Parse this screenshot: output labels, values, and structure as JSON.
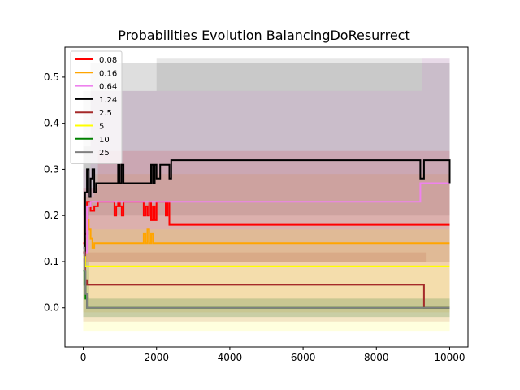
{
  "chart_data": {
    "type": "line",
    "title": "Probabilities Evolution BalancingDoResurrect",
    "xlabel": "",
    "ylabel": "",
    "xlim": [
      -500,
      10500
    ],
    "ylim": [
      -0.085,
      0.565
    ],
    "xticks": [
      0,
      2000,
      4000,
      6000,
      8000,
      10000
    ],
    "xtick_labels": [
      "0",
      "2000",
      "4000",
      "6000",
      "8000",
      "10000"
    ],
    "yticks": [
      0.0,
      0.1,
      0.2,
      0.3,
      0.4,
      0.5
    ],
    "ytick_labels": [
      "0.0",
      "0.1",
      "0.2",
      "0.3",
      "0.4",
      "0.5"
    ],
    "grid": false,
    "legend": "upper-left",
    "series": [
      {
        "name": "0.08",
        "color": "#ff0000",
        "points": [
          [
            0,
            0.14
          ],
          [
            40,
            0.16
          ],
          [
            100,
            0.23
          ],
          [
            200,
            0.21
          ],
          [
            300,
            0.22
          ],
          [
            400,
            0.23
          ],
          [
            800,
            0.23
          ],
          [
            850,
            0.2
          ],
          [
            900,
            0.22
          ],
          [
            950,
            0.23
          ],
          [
            1000,
            0.22
          ],
          [
            1050,
            0.2
          ],
          [
            1100,
            0.23
          ],
          [
            1600,
            0.23
          ],
          [
            1650,
            0.2
          ],
          [
            1700,
            0.22
          ],
          [
            1750,
            0.2
          ],
          [
            1800,
            0.23
          ],
          [
            1850,
            0.19
          ],
          [
            1900,
            0.22
          ],
          [
            1950,
            0.19
          ],
          [
            2000,
            0.23
          ],
          [
            2200,
            0.23
          ],
          [
            2250,
            0.2
          ],
          [
            2300,
            0.23
          ],
          [
            2350,
            0.18
          ],
          [
            10000,
            0.18
          ]
        ],
        "band": [
          [
            0,
            0.02,
            0.26
          ],
          [
            400,
            0.1,
            0.34
          ],
          [
            10000,
            0.1,
            0.34
          ]
        ]
      },
      {
        "name": "0.16",
        "color": "#ffa500",
        "points": [
          [
            0,
            0.12
          ],
          [
            50,
            0.15
          ],
          [
            100,
            0.19
          ],
          [
            150,
            0.17
          ],
          [
            200,
            0.15
          ],
          [
            250,
            0.13
          ],
          [
            300,
            0.14
          ],
          [
            1600,
            0.14
          ],
          [
            1650,
            0.16
          ],
          [
            1700,
            0.14
          ],
          [
            1750,
            0.17
          ],
          [
            1800,
            0.14
          ],
          [
            1850,
            0.16
          ],
          [
            1900,
            0.14
          ],
          [
            10000,
            0.14
          ]
        ],
        "band": [
          [
            0,
            0.0,
            0.24
          ],
          [
            300,
            -0.01,
            0.29
          ],
          [
            10000,
            -0.01,
            0.29
          ]
        ]
      },
      {
        "name": "0.64",
        "color": "#ee82ee",
        "points": [
          [
            0,
            0.12
          ],
          [
            100,
            0.22
          ],
          [
            200,
            0.23
          ],
          [
            9150,
            0.23
          ],
          [
            9200,
            0.27
          ],
          [
            10000,
            0.27
          ]
        ],
        "band": [
          [
            0,
            0.05,
            0.3
          ],
          [
            200,
            0.09,
            0.47
          ],
          [
            9200,
            0.09,
            0.47
          ],
          [
            9250,
            0.09,
            0.54
          ],
          [
            10000,
            0.09,
            0.54
          ]
        ]
      },
      {
        "name": "1.24",
        "color": "#000000",
        "points": [
          [
            0,
            0.12
          ],
          [
            50,
            0.25
          ],
          [
            100,
            0.3
          ],
          [
            150,
            0.24
          ],
          [
            200,
            0.28
          ],
          [
            250,
            0.3
          ],
          [
            300,
            0.25
          ],
          [
            350,
            0.27
          ],
          [
            900,
            0.27
          ],
          [
            950,
            0.31
          ],
          [
            1000,
            0.27
          ],
          [
            1050,
            0.31
          ],
          [
            1100,
            0.27
          ],
          [
            1800,
            0.27
          ],
          [
            1850,
            0.31
          ],
          [
            1900,
            0.27
          ],
          [
            1950,
            0.31
          ],
          [
            2000,
            0.28
          ],
          [
            2100,
            0.31
          ],
          [
            2300,
            0.31
          ],
          [
            2350,
            0.28
          ],
          [
            2400,
            0.32
          ],
          [
            9150,
            0.32
          ],
          [
            9200,
            0.28
          ],
          [
            9300,
            0.32
          ],
          [
            9950,
            0.32
          ],
          [
            10000,
            0.27
          ]
        ],
        "band": [
          [
            0,
            0.05,
            0.35
          ],
          [
            200,
            0.1,
            0.53
          ],
          [
            10000,
            0.1,
            0.53
          ]
        ]
      },
      {
        "name": "2.5",
        "color": "#a52a2a",
        "points": [
          [
            0,
            0.12
          ],
          [
            50,
            0.06
          ],
          [
            100,
            0.05
          ],
          [
            9250,
            0.05
          ],
          [
            9300,
            0.0
          ],
          [
            10000,
            0.0
          ]
        ],
        "band": [
          [
            0,
            0.0,
            0.12
          ],
          [
            100,
            -0.03,
            0.12
          ],
          [
            9300,
            -0.03,
            0.12
          ],
          [
            9350,
            -0.03,
            0.1
          ],
          [
            10000,
            -0.03,
            0.1
          ]
        ]
      },
      {
        "name": "5",
        "color": "#ffff00",
        "points": [
          [
            0,
            0.11
          ],
          [
            50,
            0.09
          ],
          [
            10000,
            0.09
          ]
        ],
        "band": [
          [
            0,
            -0.05,
            0.17
          ],
          [
            10000,
            -0.05,
            0.17
          ]
        ]
      },
      {
        "name": "10",
        "color": "#008000",
        "points": [
          [
            0,
            0.08
          ],
          [
            30,
            0.05
          ],
          [
            60,
            0.02
          ],
          [
            100,
            0.0
          ],
          [
            10000,
            0.0
          ]
        ],
        "band": [
          [
            0,
            -0.02,
            0.1
          ],
          [
            150,
            -0.02,
            0.02
          ],
          [
            10000,
            -0.02,
            0.02
          ]
        ]
      },
      {
        "name": "25",
        "color": "#808080",
        "points": [
          [
            0,
            0.13
          ],
          [
            30,
            0.08
          ],
          [
            60,
            0.03
          ],
          [
            100,
            0.0
          ],
          [
            10000,
            0.0
          ]
        ],
        "band": [
          [
            0,
            -0.02,
            0.14
          ],
          [
            100,
            -0.02,
            0.02
          ],
          [
            10000,
            -0.02,
            0.02
          ]
        ]
      }
    ],
    "lightgray_band": [
      [
        0,
        0.2,
        0.47
      ],
      [
        2000,
        0.2,
        0.54
      ],
      [
        9150,
        0.2,
        0.54
      ],
      [
        10000,
        0.2,
        0.54
      ]
    ]
  }
}
